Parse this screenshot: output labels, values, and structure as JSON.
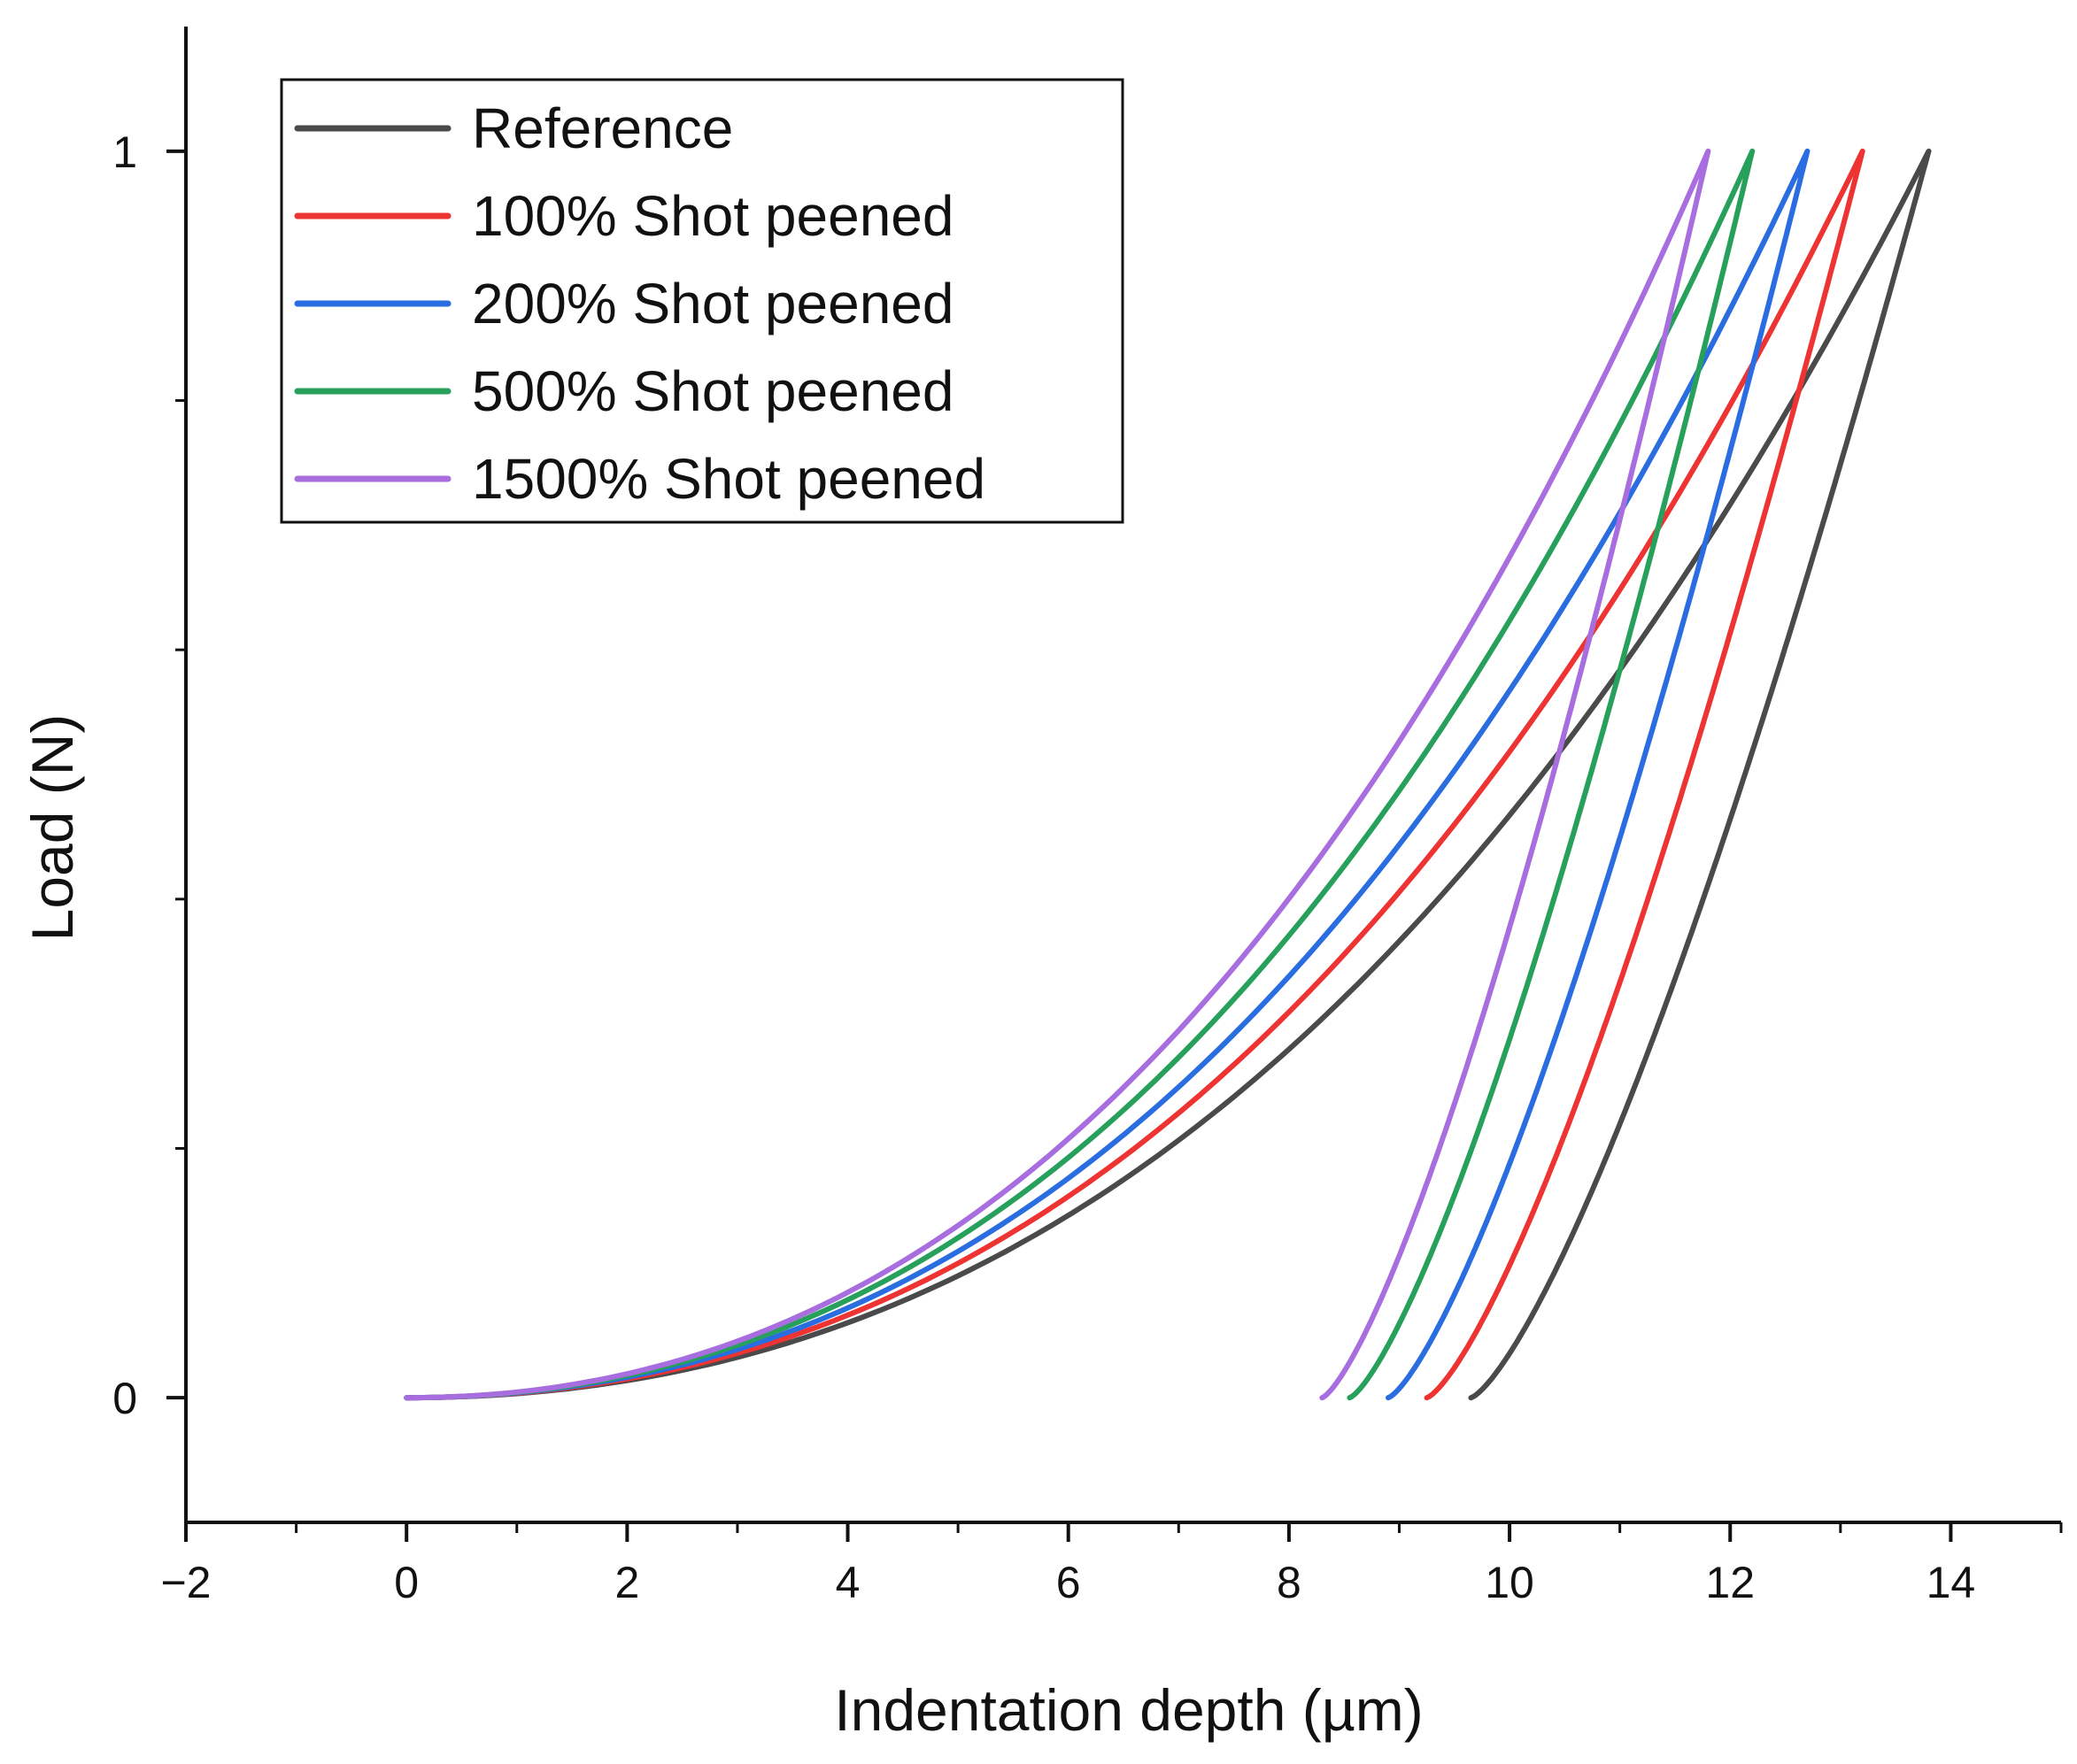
{
  "chart_data": {
    "type": "line",
    "title": "",
    "xlabel": "Indentation depth (µm)",
    "ylabel": "Load (N)",
    "xlim": [
      -2,
      15
    ],
    "ylim": [
      -0.1,
      1.1
    ],
    "xticks": [
      -2,
      0,
      2,
      4,
      6,
      8,
      10,
      12,
      14
    ],
    "xtick_labels": [
      "−2",
      "0",
      "2",
      "4",
      "6",
      "8",
      "10",
      "12",
      "14"
    ],
    "yticks": [
      0,
      1
    ],
    "ytick_labels": [
      "0",
      "1"
    ],
    "grid": false,
    "legend_position": "top-left",
    "series": [
      {
        "name": "Reference",
        "color": "#4a4a4a",
        "max_depth": 13.8,
        "final_depth": 9.65,
        "max_load": 1
      },
      {
        "name": "100% Shot peened",
        "color": "#ee3333",
        "max_depth": 13.2,
        "final_depth": 9.25,
        "max_load": 1
      },
      {
        "name": "200% Shot peened",
        "color": "#2a6de0",
        "max_depth": 12.7,
        "final_depth": 8.9,
        "max_load": 1
      },
      {
        "name": "500% Shot peened",
        "color": "#26a05a",
        "max_depth": 12.2,
        "final_depth": 8.55,
        "max_load": 1
      },
      {
        "name": "1500% Shot peened",
        "color": "#a86ee0",
        "max_depth": 11.8,
        "final_depth": 8.3,
        "max_load": 1
      }
    ]
  }
}
